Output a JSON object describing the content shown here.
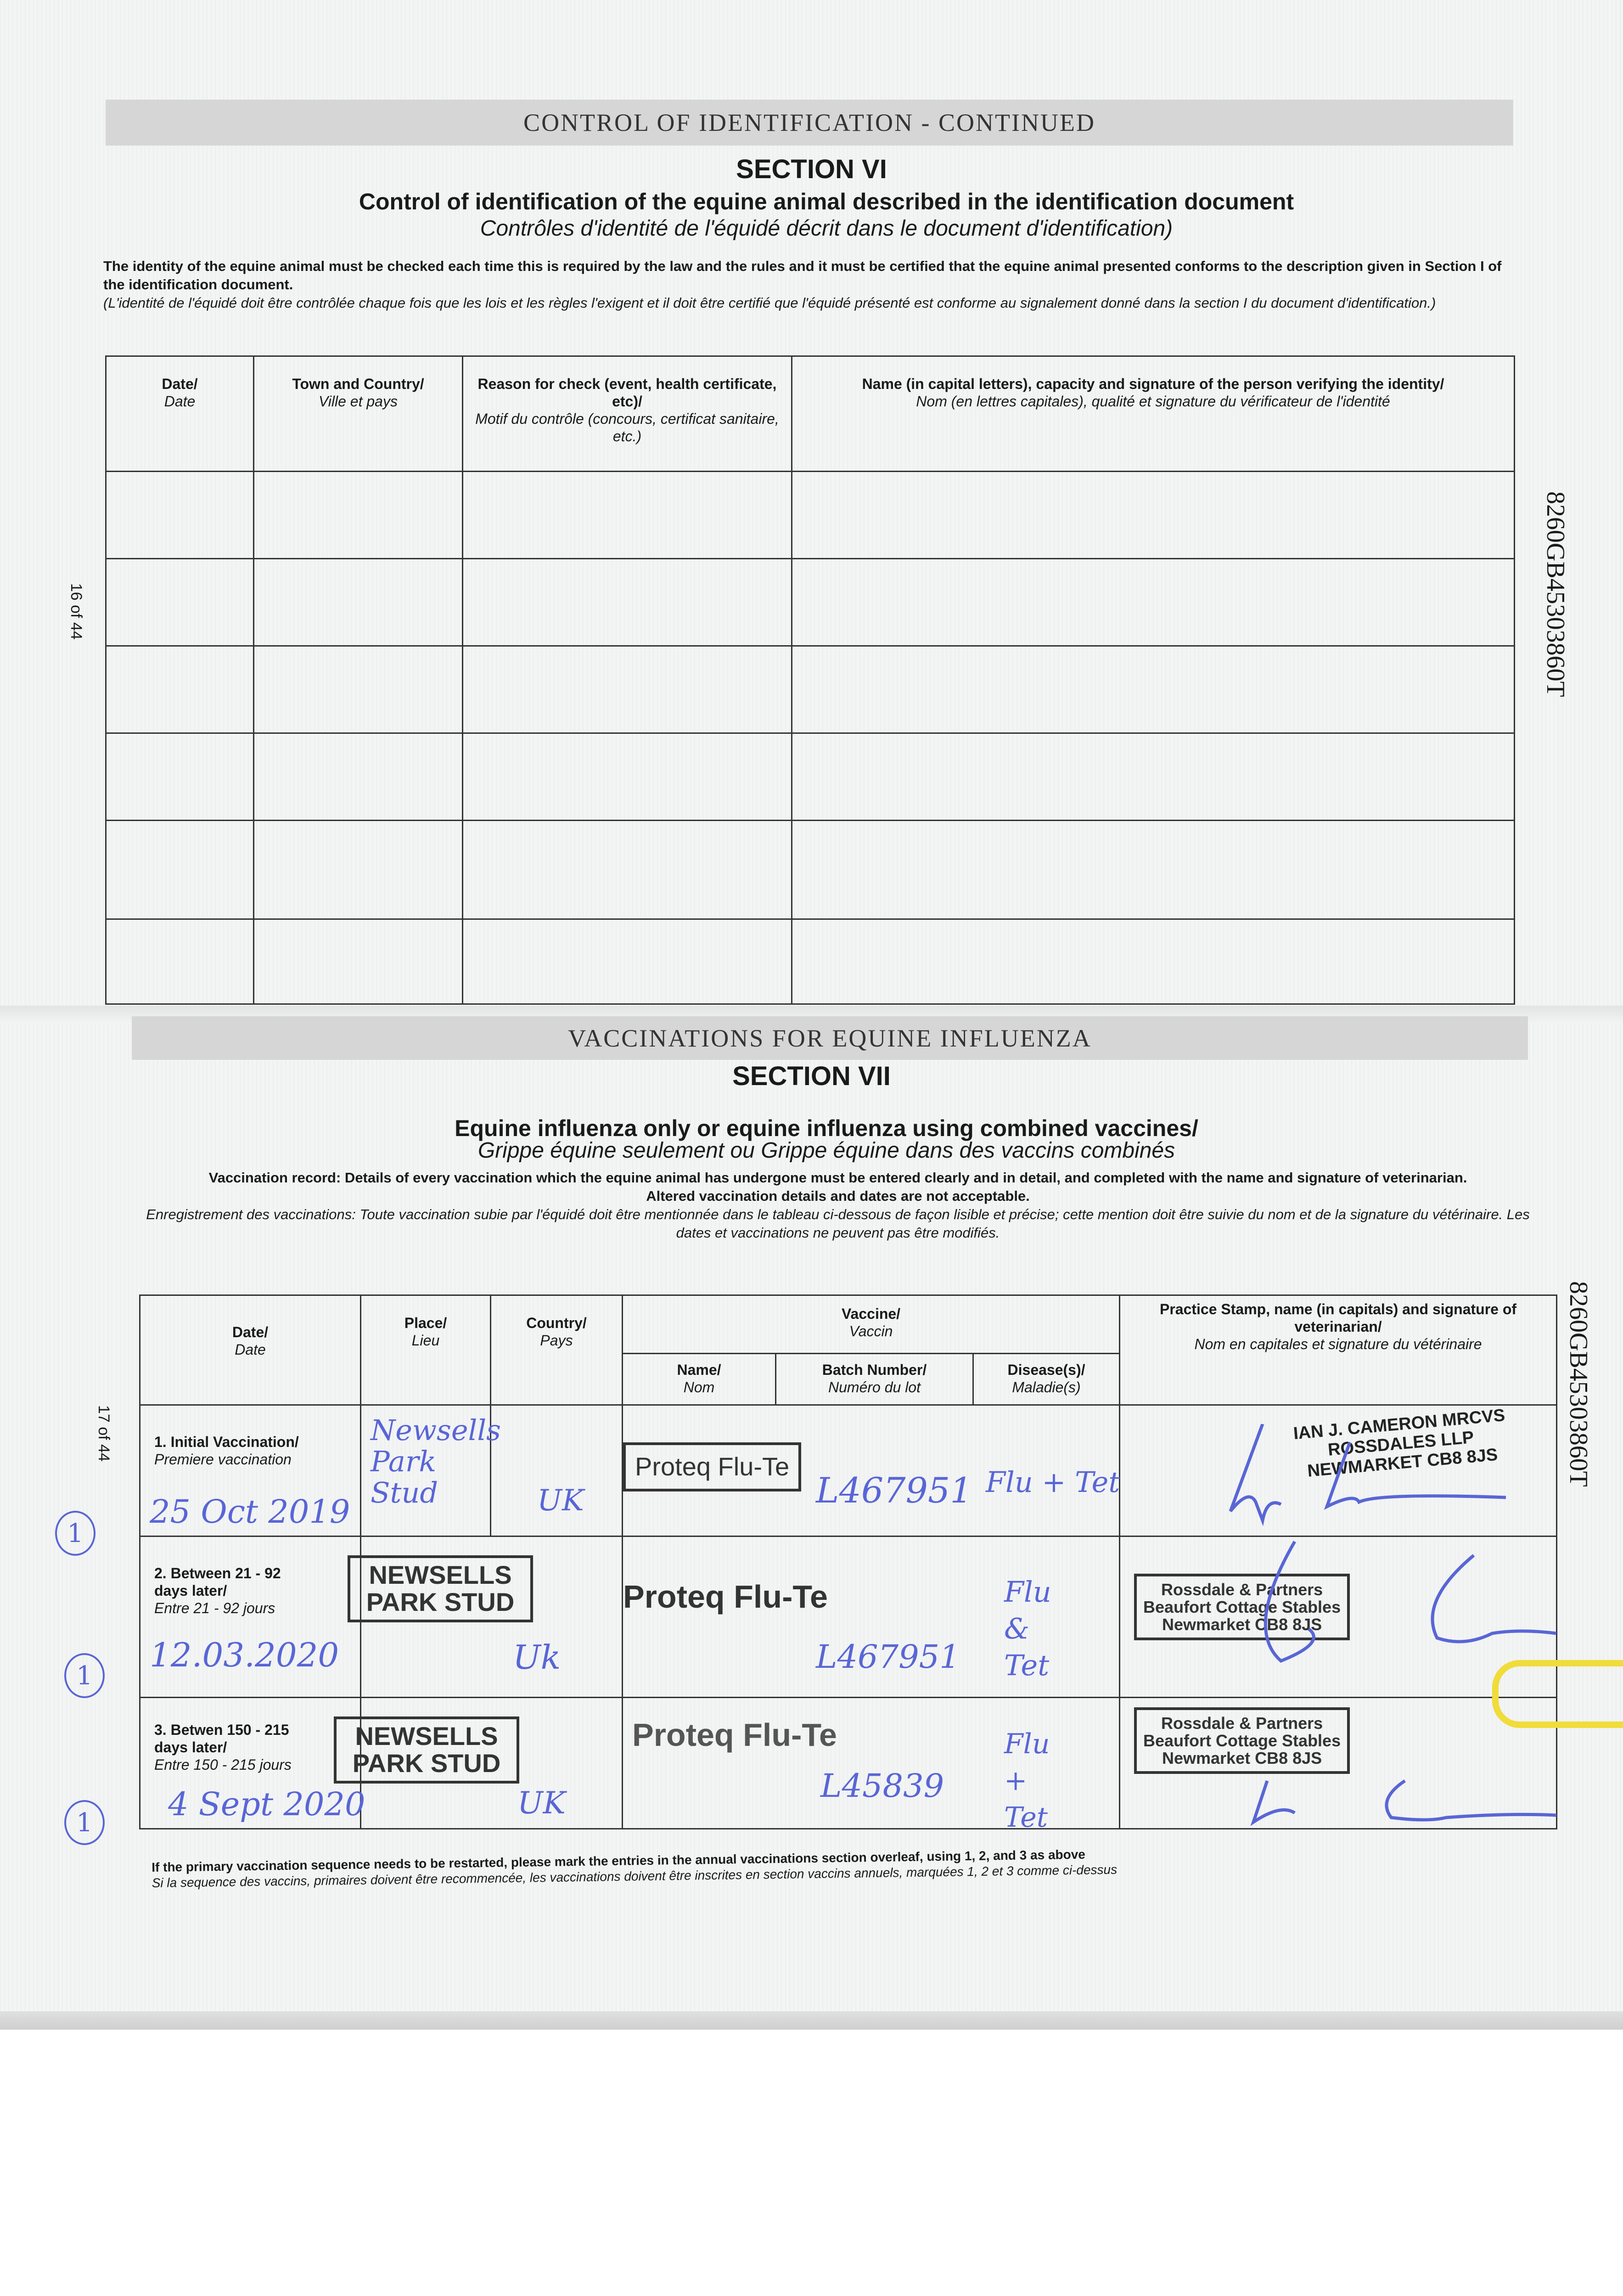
{
  "page16": {
    "band_title": "CONTROL OF IDENTIFICATION - CONTINUED",
    "section": "SECTION VI",
    "title_en": "Control of identification of the equine animal described in the identification document",
    "title_fr": "Contrôles d'identité de l'équidé décrit dans le document d'identification)",
    "intro_en": "The identity of the equine animal must be checked each time this is required by the law and the rules and it must be certified that the equine animal presented conforms to the description given in Section I of the identification document.",
    "intro_fr": "(L'identité de l'équidé doit être contrôlée chaque fois que les lois et les règles l'exigent et il doit être certifié que l'équidé présenté est conforme au signalement donné dans la section I du document d'identification.)",
    "page_label": "16 of 44",
    "passport_number": "8260GB45303860T",
    "columns": [
      {
        "en": "Date/",
        "fr": "Date"
      },
      {
        "en": "Town and Country/",
        "fr": "Ville et pays"
      },
      {
        "en": "Reason for check (event, health certificate, etc)/",
        "fr": "Motif du contrôle (concours, certificat sanitaire, etc.)"
      },
      {
        "en": "Name (in capital letters), capacity and signature of the person verifying the identity/",
        "fr": "Nom (en lettres capitales), qualité et signature du vérificateur de l'identité"
      }
    ]
  },
  "page17": {
    "band_title": "VACCINATIONS FOR EQUINE INFLUENZA",
    "section": "SECTION VII",
    "title_en": "Equine influenza only or equine influenza using combined vaccines/",
    "title_fr": "Grippe équine seulement ou Grippe équine dans des vaccins combinés",
    "intro_en_1": "Vaccination record: Details of every vaccination which the equine animal has undergone must be entered clearly and in detail, and completed with the name and signature of veterinarian.",
    "intro_en_2": "Altered vaccination details and dates are not acceptable.",
    "intro_fr": "Enregistrement des vaccinations: Toute vaccination subie par l'équidé doit être mentionnée dans le tableau ci-dessous de façon lisible et précise; cette mention doit être suivie du nom et de la signature du vétérinaire. Les dates et vaccinations ne peuvent pas être modifiés.",
    "page_label": "17 of 44",
    "passport_number": "8260GB45303860T",
    "headers": {
      "date": {
        "en": "Date/",
        "fr": "Date"
      },
      "place": {
        "en": "Place/",
        "fr": "Lieu"
      },
      "country": {
        "en": "Country/",
        "fr": "Pays"
      },
      "vaccine": {
        "en": "Vaccine/",
        "fr": "Vaccin"
      },
      "name": {
        "en": "Name/",
        "fr": "Nom"
      },
      "batch": {
        "en": "Batch Number/",
        "fr": "Numéro du lot"
      },
      "disease": {
        "en": "Disease(s)/",
        "fr": "Maladie(s)"
      },
      "vet": {
        "en": "Practice Stamp, name (in capitals) and signature of veterinarian/",
        "fr": "Nom en capitales et signature du vétérinaire"
      }
    },
    "rows": [
      {
        "label_en": "1. Initial Vaccination/",
        "label_fr": "Premiere vaccination",
        "mark": "1",
        "date": "25 Oct 2019",
        "place": "Newsells Park Stud",
        "country": "UK",
        "vaccine": "Proteq Flu-Te",
        "batch": "L467951",
        "disease": "Flu + Tet",
        "vet_stamp": [
          "IAN J. CAMERON MRCVS",
          "ROSSDALES LLP",
          "NEWMARKET CB8 8JS"
        ]
      },
      {
        "label_en": "2. Between 21 - 92 days later/",
        "label_fr": "Entre 21 - 92 jours",
        "mark": "1",
        "date": "12.03.2020",
        "place": "NEWSELLS PARK STUD",
        "country": "Uk",
        "vaccine": "Proteq Flu-Te",
        "batch": "L467951",
        "disease": "Flu & Tet",
        "vet_stamp": [
          "Rossdale & Partners",
          "Beaufort Cottage Stables",
          "Newmarket CB8 8JS"
        ]
      },
      {
        "label_en": "3. Betwen 150 - 215 days later/",
        "label_fr": "Entre 150 - 215 jours",
        "mark": "1",
        "date": "4 Sept 2020",
        "place": "NEWSELLS PARK STUD",
        "country": "UK",
        "vaccine": "Proteq Flu-Te",
        "batch": "L45839",
        "disease": "Flu + Tet",
        "vet_stamp": [
          "Rossdale & Partners",
          "Beaufort Cottage Stables",
          "Newmarket CB8 8JS"
        ]
      }
    ],
    "footnote_en": "If the primary vaccination sequence needs to be restarted, please mark the entries in the annual vaccinations section overleaf, using 1, 2, and 3 as above",
    "footnote_fr": "Si la sequence des vaccins, primaires doivent être recommencée, les vaccinations doivent être inscrites en section vaccins annuels, marquées 1, 2 et 3 comme ci-dessus"
  },
  "colors": {
    "ink": "#5866d6",
    "band": "#d6d6d6",
    "clip": "#f0dc3a"
  }
}
